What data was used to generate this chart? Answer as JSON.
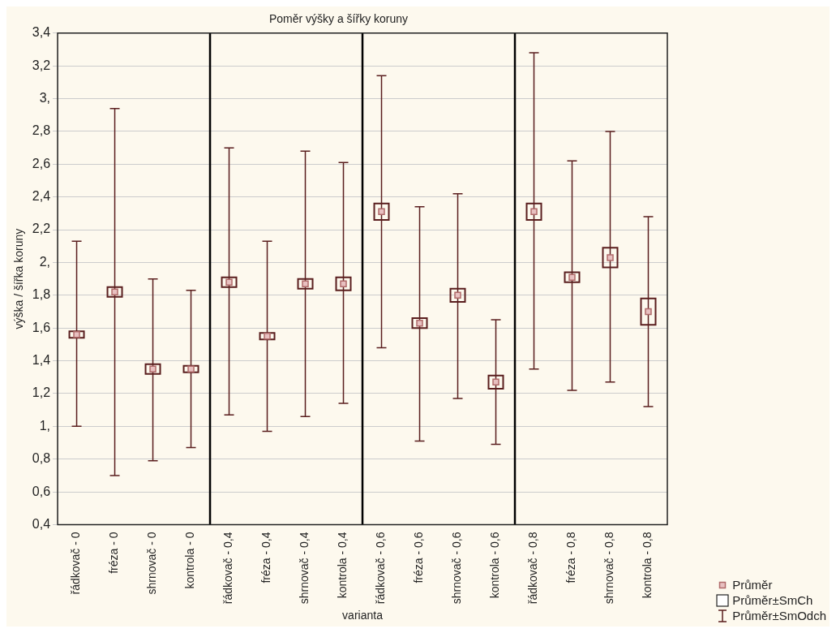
{
  "chart_data": {
    "type": "box",
    "title": "Poměr výšky a šířky koruny",
    "xlabel": "varianta",
    "ylabel": "výška / šířka koruny",
    "categories": [
      "řádkovač - 0",
      "fréza - 0",
      "shrnovač - 0",
      "kontrola - 0",
      "řádkovač - 0,4",
      "fréza - 0,4",
      "shrnovač - 0,4",
      "kontrola - 0,4",
      "řádkovač - 0,6",
      "fréza - 0,6",
      "shrnovač - 0,6",
      "kontrola - 0,6",
      "řádkovač - 0,8",
      "fréza - 0,8",
      "shrnovač - 0,8",
      "kontrola - 0,8"
    ],
    "series": [
      {
        "color": "#5a1e1e",
        "boxes": [
          {
            "low": 1.0,
            "q1": 1.54,
            "median": 1.56,
            "q3": 1.58,
            "high": 2.13
          },
          {
            "low": 0.7,
            "q1": 1.79,
            "median": 1.82,
            "q3": 1.85,
            "high": 2.94
          },
          {
            "low": 0.79,
            "q1": 1.32,
            "median": 1.35,
            "q3": 1.38,
            "high": 1.9
          },
          {
            "low": 0.87,
            "q1": 1.33,
            "median": 1.35,
            "q3": 1.37,
            "high": 1.83
          },
          {
            "low": 1.07,
            "q1": 1.85,
            "median": 1.88,
            "q3": 1.91,
            "high": 2.7
          },
          {
            "low": 0.97,
            "q1": 1.53,
            "median": 1.55,
            "q3": 1.57,
            "high": 2.13
          },
          {
            "low": 1.06,
            "q1": 1.84,
            "median": 1.87,
            "q3": 1.9,
            "high": 2.68
          },
          {
            "low": 1.14,
            "q1": 1.83,
            "median": 1.87,
            "q3": 1.91,
            "high": 2.61
          },
          {
            "low": 1.48,
            "q1": 2.26,
            "median": 2.31,
            "q3": 2.36,
            "high": 3.14
          },
          {
            "low": 0.91,
            "q1": 1.6,
            "median": 1.63,
            "q3": 1.66,
            "high": 2.34
          },
          {
            "low": 1.17,
            "q1": 1.76,
            "median": 1.8,
            "q3": 1.84,
            "high": 2.42
          },
          {
            "low": 0.89,
            "q1": 1.23,
            "median": 1.27,
            "q3": 1.31,
            "high": 1.65
          },
          {
            "low": 1.35,
            "q1": 2.26,
            "median": 2.31,
            "q3": 2.36,
            "high": 3.28
          },
          {
            "low": 1.22,
            "q1": 1.88,
            "median": 1.91,
            "q3": 1.94,
            "high": 2.62
          },
          {
            "low": 1.27,
            "q1": 1.97,
            "median": 2.03,
            "q3": 2.09,
            "high": 2.8
          },
          {
            "low": 1.12,
            "q1": 1.62,
            "median": 1.7,
            "q3": 1.78,
            "high": 2.28
          }
        ]
      }
    ],
    "ylim": [
      0.4,
      3.4
    ],
    "yticks": [
      {
        "value": 0.4,
        "label": "0,4"
      },
      {
        "value": 0.6,
        "label": "0,6"
      },
      {
        "value": 0.8,
        "label": "0,8"
      },
      {
        "value": 1,
        "label": "1,"
      },
      {
        "value": 1.2,
        "label": "1,2"
      },
      {
        "value": 1.4,
        "label": "1,4"
      },
      {
        "value": 1.6,
        "label": "1,6"
      },
      {
        "value": 1.8,
        "label": "1,8"
      },
      {
        "value": 2,
        "label": "2,"
      },
      {
        "value": 2.2,
        "label": "2,2"
      },
      {
        "value": 2.4,
        "label": "2,4"
      },
      {
        "value": 2.6,
        "label": "2,6"
      },
      {
        "value": 2.8,
        "label": "2,8"
      },
      {
        "value": 3,
        "label": "3,"
      },
      {
        "value": 3.2,
        "label": "3,2"
      },
      {
        "value": 3.4,
        "label": "3,4"
      }
    ],
    "grid": "y",
    "marker": "square",
    "annotations": [
      "Průměr",
      "Průměr±SmCh",
      "Průměr±SmOdch"
    ]
  }
}
